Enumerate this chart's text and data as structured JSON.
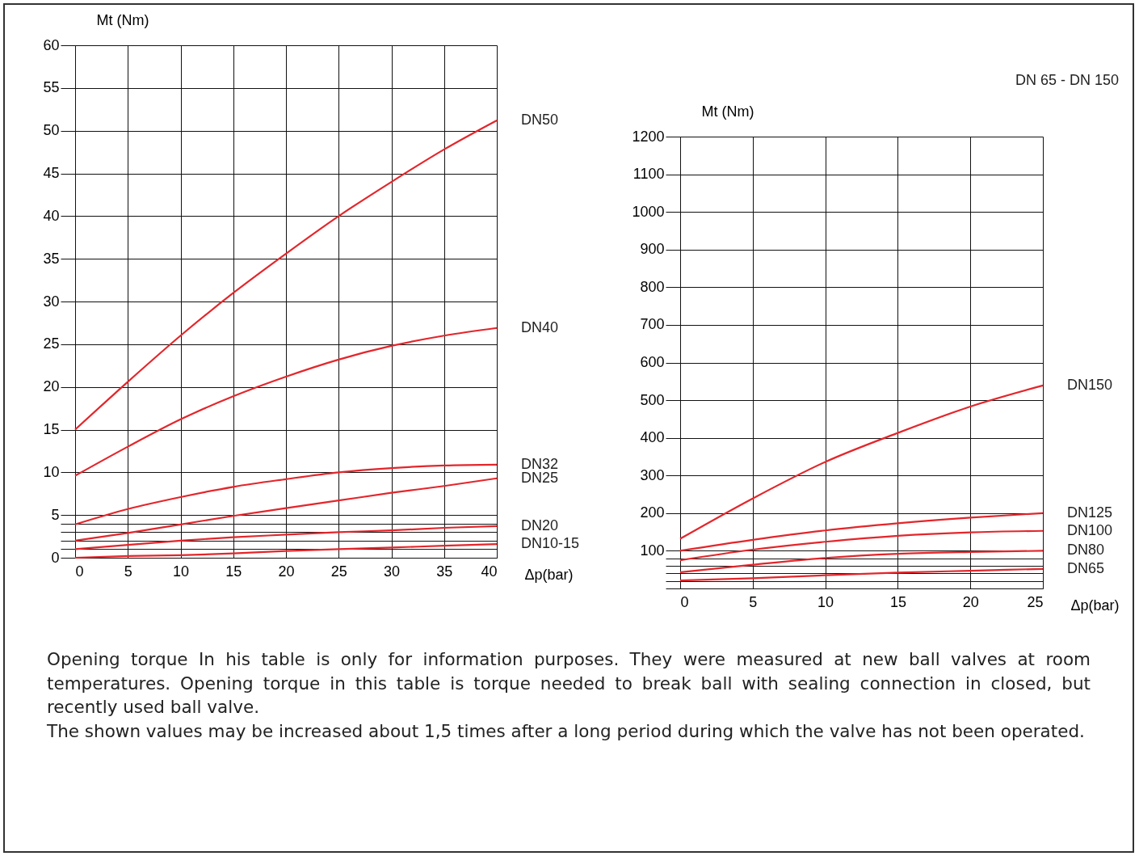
{
  "chart_data": [
    {
      "type": "line",
      "ylabel": "Mt (Nm)",
      "xlabel": "Δp(bar)",
      "grid": true,
      "legend": false,
      "marker": "none",
      "xlim": [
        0,
        40
      ],
      "xticks": [
        0,
        5,
        10,
        15,
        20,
        25,
        30,
        35,
        40
      ],
      "ylim": [
        0,
        60
      ],
      "yticks": [
        0,
        {
          "value": 1,
          "label": null
        },
        {
          "value": 2,
          "label": null
        },
        {
          "value": 3,
          "label": null
        },
        {
          "value": 4,
          "label": null
        },
        5,
        10,
        15,
        20,
        25,
        30,
        35,
        40,
        45,
        50,
        55,
        60
      ],
      "x": [
        0,
        5,
        10,
        15,
        20,
        25,
        30,
        35,
        40
      ],
      "series": [
        {
          "name": "DN50",
          "color": "#e3262b",
          "values": [
            15,
            20.6,
            26,
            31,
            35.6,
            40,
            44,
            47.8,
            51.2
          ]
        },
        {
          "name": "DN40",
          "color": "#e3262b",
          "values": [
            9.6,
            13,
            16.2,
            18.9,
            21.2,
            23.2,
            24.8,
            26,
            26.9
          ]
        },
        {
          "name": "DN32",
          "color": "#e3262b",
          "values": [
            3.9,
            5.7,
            7.1,
            8.3,
            9.2,
            10,
            10.5,
            10.8,
            10.9
          ]
        },
        {
          "name": "DN25",
          "color": "#e3262b",
          "values": [
            2,
            2.9,
            3.9,
            4.9,
            5.8,
            6.7,
            7.6,
            8.4,
            9.3
          ]
        },
        {
          "name": "DN20",
          "color": "#e3262b",
          "values": [
            1,
            1.5,
            2,
            2.4,
            2.7,
            3,
            3.2,
            3.5,
            3.7
          ]
        },
        {
          "name": "DN10-15",
          "color": "#e3262b",
          "values": [
            0,
            0.2,
            0.3,
            0.5,
            0.8,
            1,
            1.2,
            1.4,
            1.6
          ]
        }
      ],
      "annotations": [
        "Opening torque In his table is only for information purposes. They were measured at new ball valves at room temperatures. Opening torque in this table is torque needed to break ball with sealing connection in closed, but recently used ball valve.",
        "The shown values may be increased about 1,5 times after a long period during which the valve has not been operated."
      ]
    },
    {
      "type": "line",
      "title": "DN 65 - DN 150",
      "ylabel": "Mt (Nm)",
      "xlabel": "Δp(bar)",
      "grid": true,
      "legend": false,
      "marker": "none",
      "xlim": [
        0,
        25
      ],
      "xticks": [
        0,
        5,
        10,
        15,
        20,
        25
      ],
      "ylim": [
        0,
        1200
      ],
      "yticks": [
        {
          "value": 0,
          "label": null
        },
        {
          "value": 20,
          "label": null
        },
        {
          "value": 40,
          "label": null
        },
        {
          "value": 60,
          "label": null
        },
        {
          "value": 80,
          "label": null
        },
        100,
        200,
        300,
        400,
        500,
        600,
        700,
        800,
        900,
        1000,
        1100,
        1200
      ],
      "x": [
        0,
        5,
        10,
        15,
        20,
        25
      ],
      "series": [
        {
          "name": "DN150",
          "color": "#e3262b",
          "values": [
            132,
            239,
            336,
            413,
            483,
            539
          ]
        },
        {
          "name": "DN125",
          "color": "#e3262b",
          "values": [
            100,
            129,
            154,
            173,
            188,
            200
          ]
        },
        {
          "name": "DN100",
          "color": "#e3262b",
          "values": [
            75,
            103,
            124,
            140,
            149,
            153
          ]
        },
        {
          "name": "DN80",
          "color": "#e3262b",
          "values": [
            43,
            63,
            81,
            92,
            97,
            100
          ]
        },
        {
          "name": "DN65",
          "color": "#e3262b",
          "values": [
            21,
            27,
            35,
            42,
            47,
            52
          ]
        }
      ]
    }
  ]
}
